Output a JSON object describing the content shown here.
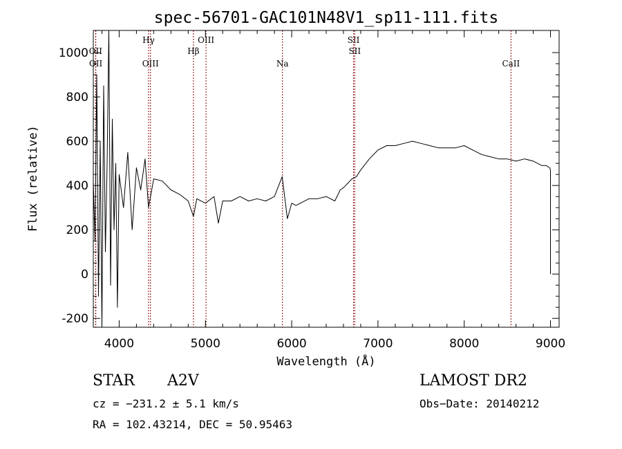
{
  "chart_data": {
    "type": "line",
    "title": "spec-56701-GAC101N48V1_sp11-111.fits",
    "xlabel": "Wavelength (Å)",
    "ylabel": "Flux (relative)",
    "xlim": [
      3700,
      9100
    ],
    "ylim": [
      -240,
      1100
    ],
    "xticks": [
      4000,
      5000,
      6000,
      7000,
      8000,
      9000
    ],
    "yticks": [
      -200,
      0,
      200,
      400,
      600,
      800,
      1000
    ],
    "grid": false,
    "line_color": "#000000",
    "marker_color": "#8b0000",
    "series": [
      {
        "x": [
          3700,
          3720,
          3740,
          3760,
          3780,
          3800,
          3820,
          3840,
          3860,
          3880,
          3900,
          3920,
          3940,
          3960,
          3980,
          4000,
          4050,
          4100,
          4150,
          4200,
          4250,
          4300,
          4340,
          4400,
          4500,
          4600,
          4700,
          4800,
          4861,
          4900,
          5000,
          5100,
          5150,
          5200,
          5300,
          5400,
          5500,
          5600,
          5700,
          5800,
          5890,
          5950,
          6000,
          6050,
          6100,
          6200,
          6300,
          6400,
          6500,
          6563,
          6600,
          6650,
          6700,
          6750,
          6800,
          6900,
          7000,
          7100,
          7200,
          7300,
          7400,
          7500,
          7600,
          7700,
          7800,
          7900,
          8000,
          8100,
          8200,
          8300,
          8400,
          8500,
          8600,
          8700,
          8800,
          8900,
          8950,
          8990,
          9000,
          9000
        ],
        "y": [
          420,
          150,
          900,
          -100,
          600,
          -240,
          850,
          100,
          500,
          1100,
          -50,
          700,
          200,
          500,
          -150,
          450,
          300,
          550,
          200,
          480,
          380,
          520,
          300,
          430,
          420,
          380,
          360,
          330,
          260,
          340,
          320,
          350,
          230,
          330,
          330,
          350,
          330,
          340,
          330,
          350,
          440,
          250,
          320,
          310,
          320,
          340,
          340,
          350,
          330,
          380,
          390,
          410,
          430,
          440,
          470,
          520,
          560,
          580,
          580,
          590,
          600,
          590,
          580,
          570,
          570,
          570,
          580,
          560,
          540,
          530,
          520,
          520,
          510,
          520,
          510,
          490,
          490,
          480,
          470,
          0
        ]
      }
    ],
    "lines": [
      {
        "label": "OII",
        "x": 3727,
        "row": 2
      },
      {
        "label": "OII",
        "x": 3729,
        "row": 3
      },
      {
        "label": "Hγ",
        "x": 4341,
        "row": 1
      },
      {
        "label": "OIII",
        "x": 4363,
        "row": 3
      },
      {
        "label": "Hβ",
        "x": 4861,
        "row": 2
      },
      {
        "label": "OIII",
        "x": 5007,
        "row": 1
      },
      {
        "label": "Na",
        "x": 5893,
        "row": 3
      },
      {
        "label": "SII",
        "x": 6717,
        "row": 1
      },
      {
        "label": "SII",
        "x": 6731,
        "row": 2
      },
      {
        "label": "CaII",
        "x": 8542,
        "row": 3
      }
    ]
  },
  "info": {
    "object_type": "STAR",
    "subclass": "A2V",
    "survey": "LAMOST DR2",
    "cz": "cz = −231.2 ± 5.1 km/s",
    "obs_date": "Obs−Date: 20140212",
    "coords": "RA = 102.43214, DEC =  50.95463"
  }
}
